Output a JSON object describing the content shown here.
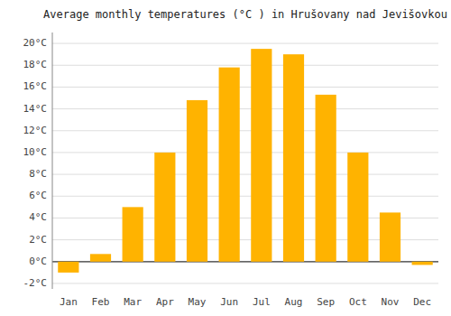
{
  "chart_data": {
    "type": "bar",
    "title": "Average monthly temperatures (°C ) in Hrušovany nad Jevišovkou",
    "categories": [
      "Jan",
      "Feb",
      "Mar",
      "Apr",
      "May",
      "Jun",
      "Jul",
      "Aug",
      "Sep",
      "Oct",
      "Nov",
      "Dec"
    ],
    "values": [
      -1.0,
      0.7,
      5.0,
      10.0,
      14.8,
      17.8,
      19.5,
      19.0,
      15.3,
      10.0,
      4.5,
      -0.3
    ],
    "color": "#FFB300",
    "ylim": [
      -2.5,
      21.0
    ],
    "yticks": [
      {
        "value": -2,
        "label": "-2°C"
      },
      {
        "value": 0,
        "label": "0°C"
      },
      {
        "value": 2,
        "label": "2°C"
      },
      {
        "value": 4,
        "label": "4°C"
      },
      {
        "value": 6,
        "label": "6°C"
      },
      {
        "value": 8,
        "label": "8°C"
      },
      {
        "value": 10,
        "label": "10°C"
      },
      {
        "value": 12,
        "label": "12°C"
      },
      {
        "value": 14,
        "label": "14°C"
      },
      {
        "value": 16,
        "label": "16°C"
      },
      {
        "value": 18,
        "label": "18°C"
      },
      {
        "value": 20,
        "label": "20°C"
      }
    ],
    "grid": true
  }
}
